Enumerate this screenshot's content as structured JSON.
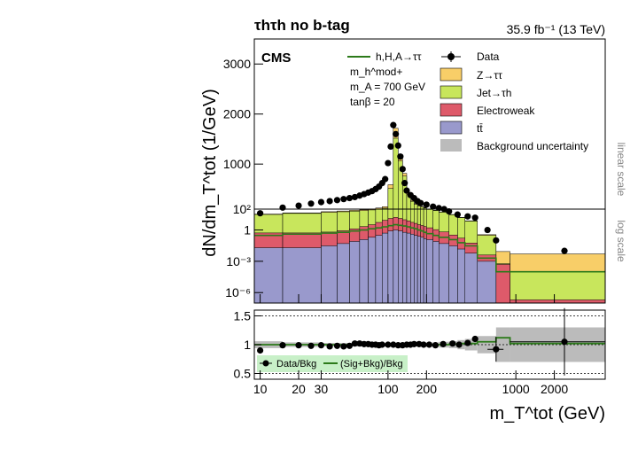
{
  "header": {
    "title": "τhτh no b-tag",
    "lumi": "35.9 fb⁻¹ (13 TeV)",
    "cms": "CMS"
  },
  "axes": {
    "ylabel_main": "dN/dm_T^tot (1/GeV)",
    "xlabel": "m_T^tot (GeV)",
    "linear_label": "linear scale",
    "log_label": "log scale"
  },
  "legend": {
    "signal": "h,H,A→ττ",
    "model": "m_h^mod+",
    "mass": "m_A = 700 GeV",
    "tanb": "tanβ = 20",
    "data": "Data",
    "ztt": "Z→ττ",
    "jet": "Jet→τh",
    "ew": "Electroweak",
    "tt": "tt̄",
    "unc": "Background uncertainty",
    "ratio_data": "Data/Bkg",
    "ratio_sig": "(Sig+Bkg)/Bkg"
  },
  "colors": {
    "ztt": "#f8ce68",
    "jet": "#c8e65c",
    "ew": "#de5a6a",
    "tt": "#9999cc",
    "unc": "#bbbbbb",
    "signal": "#2c7a1a",
    "legend_bg": "#c8f0c8"
  },
  "chart_data": {
    "type": "bar",
    "x_scale": "log",
    "xlim": [
      9,
      5000
    ],
    "x_ticks": [
      "10",
      "20",
      "30",
      "100",
      "200",
      "1000",
      "2000"
    ],
    "linear_ylim": [
      100,
      3500
    ],
    "linear_ticks": [
      "1000",
      "2000",
      "3000"
    ],
    "log_ylim": [
      1e-07,
      100
    ],
    "log_ticks": [
      "10²",
      "1",
      "10⁻³",
      "10⁻⁶"
    ],
    "ratio_ylim": [
      0.4,
      1.6
    ],
    "ratio_ticks": [
      "0.5",
      "1",
      "1.5"
    ],
    "bin_edges": [
      9,
      15,
      30,
      40,
      50,
      60,
      70,
      80,
      90,
      100,
      110,
      120,
      130,
      140,
      150,
      160,
      170,
      180,
      190,
      200,
      225,
      250,
      300,
      350,
      400,
      500,
      700,
      900,
      5000
    ],
    "series": [
      {
        "name": "tt̄",
        "values": [
          0.02,
          0.02,
          0.03,
          0.05,
          0.08,
          0.12,
          0.2,
          0.3,
          0.5,
          0.8,
          1.0,
          0.8,
          0.6,
          0.5,
          0.4,
          0.3,
          0.25,
          0.2,
          0.15,
          0.12,
          0.08,
          0.05,
          0.03,
          0.015,
          0.006,
          0.001,
          1e-07,
          1e-07
        ]
      },
      {
        "name": "Electroweak",
        "values": [
          0.5,
          0.5,
          0.6,
          0.8,
          1.2,
          2,
          3,
          5,
          8,
          12,
          15,
          12,
          9,
          7,
          5,
          4,
          3,
          2.5,
          2,
          1.5,
          1.0,
          0.6,
          0.3,
          0.15,
          0.05,
          0.003,
          0.0005,
          1e-07
        ]
      },
      {
        "name": "Jet→τh",
        "values": [
          30,
          38,
          48,
          55,
          62,
          70,
          80,
          92,
          110,
          500,
          1500,
          1050,
          750,
          380,
          250,
          190,
          160,
          140,
          120,
          92,
          72,
          50,
          28,
          15,
          7,
          0.3,
          0.0001,
          0.0001
        ]
      },
      {
        "name": "Z→ττ",
        "values": [
          3,
          5,
          8,
          10,
          13,
          16,
          20,
          25,
          30,
          75,
          200,
          130,
          55,
          30,
          20,
          15,
          12,
          10,
          8,
          6,
          5,
          3,
          2,
          1,
          0.5,
          0.05,
          0.008,
          0.005
        ]
      }
    ],
    "signal_values": [
      0.3,
      0.4,
      0.5,
      0.6,
      0.8,
      1.0,
      1.3,
      1.6,
      2.0,
      2.6,
      3.2,
      2.8,
      2.4,
      2.0,
      1.6,
      1.3,
      1.0,
      0.8,
      0.6,
      0.45,
      0.3,
      0.2,
      0.12,
      0.06,
      0.03,
      0.002,
      0.0001,
      0.0001
    ],
    "data_points": [
      {
        "x": 10,
        "y": 40
      },
      {
        "x": 15,
        "y": 130
      },
      {
        "x": 20,
        "y": 170
      },
      {
        "x": 25,
        "y": 210
      },
      {
        "x": 30,
        "y": 240
      },
      {
        "x": 35,
        "y": 260
      },
      {
        "x": 40,
        "y": 280
      },
      {
        "x": 45,
        "y": 300
      },
      {
        "x": 50,
        "y": 320
      },
      {
        "x": 55,
        "y": 340
      },
      {
        "x": 60,
        "y": 370
      },
      {
        "x": 65,
        "y": 400
      },
      {
        "x": 70,
        "y": 430
      },
      {
        "x": 75,
        "y": 460
      },
      {
        "x": 80,
        "y": 500
      },
      {
        "x": 85,
        "y": 550
      },
      {
        "x": 90,
        "y": 620
      },
      {
        "x": 95,
        "y": 700
      },
      {
        "x": 100,
        "y": 1020
      },
      {
        "x": 105,
        "y": 1350
      },
      {
        "x": 110,
        "y": 1780
      },
      {
        "x": 115,
        "y": 1600
      },
      {
        "x": 120,
        "y": 1370
      },
      {
        "x": 125,
        "y": 1150
      },
      {
        "x": 130,
        "y": 900
      },
      {
        "x": 135,
        "y": 620
      },
      {
        "x": 140,
        "y": 470
      },
      {
        "x": 150,
        "y": 380
      },
      {
        "x": 160,
        "y": 320
      },
      {
        "x": 170,
        "y": 260
      },
      {
        "x": 180,
        "y": 220
      },
      {
        "x": 200,
        "y": 190
      },
      {
        "x": 225,
        "y": 150
      },
      {
        "x": 250,
        "y": 120
      },
      {
        "x": 275,
        "y": 100
      },
      {
        "x": 300,
        "y": 60
      },
      {
        "x": 350,
        "y": 30
      },
      {
        "x": 420,
        "y": 20
      },
      {
        "x": 480,
        "y": 15
      },
      {
        "x": 600,
        "y": 1
      },
      {
        "x": 700,
        "y": 0.1
      },
      {
        "x": 2400,
        "y": 0.01
      }
    ],
    "ratio_points": [
      {
        "x": 10,
        "y": 0.9
      },
      {
        "x": 15,
        "y": 0.99
      },
      {
        "x": 20,
        "y": 0.99
      },
      {
        "x": 25,
        "y": 0.98
      },
      {
        "x": 30,
        "y": 0.99
      },
      {
        "x": 35,
        "y": 0.97
      },
      {
        "x": 40,
        "y": 0.98
      },
      {
        "x": 45,
        "y": 0.97
      },
      {
        "x": 50,
        "y": 0.98
      },
      {
        "x": 55,
        "y": 1.02
      },
      {
        "x": 60,
        "y": 1.02
      },
      {
        "x": 65,
        "y": 1.01
      },
      {
        "x": 70,
        "y": 1.01
      },
      {
        "x": 75,
        "y": 1.0
      },
      {
        "x": 80,
        "y": 1.0
      },
      {
        "x": 85,
        "y": 0.99
      },
      {
        "x": 90,
        "y": 1.0
      },
      {
        "x": 100,
        "y": 1.0
      },
      {
        "x": 110,
        "y": 1.0
      },
      {
        "x": 120,
        "y": 0.99
      },
      {
        "x": 130,
        "y": 0.99
      },
      {
        "x": 140,
        "y": 1.0
      },
      {
        "x": 150,
        "y": 1.0
      },
      {
        "x": 160,
        "y": 1.01
      },
      {
        "x": 175,
        "y": 1.01
      },
      {
        "x": 190,
        "y": 1.0
      },
      {
        "x": 210,
        "y": 1.0
      },
      {
        "x": 235,
        "y": 0.99
      },
      {
        "x": 270,
        "y": 1.01
      },
      {
        "x": 320,
        "y": 1.02
      },
      {
        "x": 360,
        "y": 1.0
      },
      {
        "x": 420,
        "y": 1.03
      },
      {
        "x": 480,
        "y": 1.1
      },
      {
        "x": 700,
        "y": 0.92
      },
      {
        "x": 2400,
        "y": 1.05
      }
    ],
    "ratio_sig_values": [
      1.0,
      1.0,
      1.0,
      1.0,
      1.0,
      1.0,
      1.0,
      1.0,
      1.0,
      1.0,
      1.0,
      1.0,
      1.0,
      1.0,
      1.0,
      1.0,
      1.0,
      1.0,
      1.0,
      1.0,
      1.0,
      1.0,
      1.01,
      1.02,
      1.02,
      1.05,
      1.12,
      1.02
    ],
    "ratio_unc": [
      0.06,
      0.04,
      0.03,
      0.03,
      0.03,
      0.03,
      0.03,
      0.03,
      0.03,
      0.03,
      0.03,
      0.03,
      0.03,
      0.03,
      0.03,
      0.03,
      0.03,
      0.03,
      0.03,
      0.04,
      0.04,
      0.05,
      0.06,
      0.08,
      0.1,
      0.15,
      0.3,
      0.3
    ]
  }
}
